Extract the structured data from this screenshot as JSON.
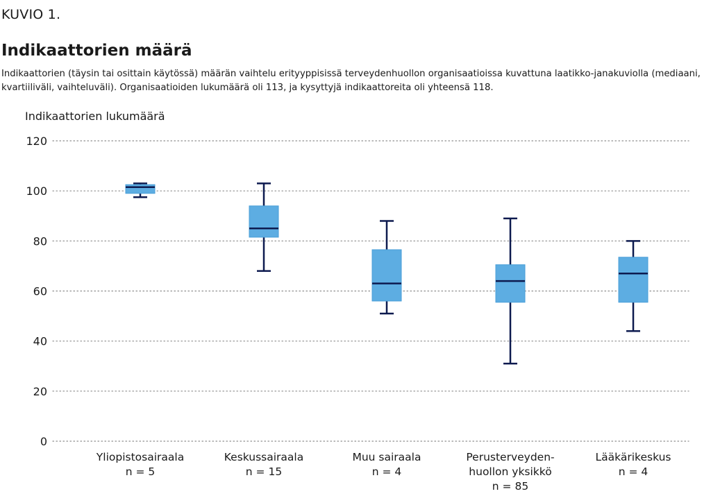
{
  "header": {
    "kicker": "KUVIO 1.",
    "title": "Indikaattorien määrä",
    "subtitle": "Indikaattorien (täysin tai osittain käytössä) määrän vaihtelu erityyppisissä terveydenhuollon organisaatioissa kuvattuna laatikko-janakuviolla (mediaani, kvartiiliväli, vaihteluväli). Organisaatioiden lukumäärä oli 113, ja kysyttyjä indikaattoreita oli yhteensä 118."
  },
  "colors": {
    "box_fill": "#5dade2",
    "line": "#0d1a4f",
    "grid": "#8c8c8c"
  },
  "chart_data": {
    "type": "box",
    "ylabel": "Indikaattorien lukumäärä",
    "ylim": [
      0,
      120
    ],
    "yticks": [
      "0",
      "20",
      "40",
      "60",
      "80",
      "100",
      "120"
    ],
    "grid": "horizontal dotted",
    "categories": [
      {
        "label_lines": [
          "Yliopistosairaala",
          "n = 5"
        ],
        "min": 97.5,
        "q1": 99,
        "median": 101.5,
        "q3": 102.5,
        "max": 103
      },
      {
        "label_lines": [
          "Keskussairaala",
          "n = 15"
        ],
        "min": 68,
        "q1": 81.5,
        "median": 85,
        "q3": 94,
        "max": 103
      },
      {
        "label_lines": [
          "Muu sairaala",
          "n = 4"
        ],
        "min": 51,
        "q1": 56,
        "median": 63,
        "q3": 76.5,
        "max": 88
      },
      {
        "label_lines": [
          "Perusterveyden-",
          "huollon yksikkö",
          "n = 85"
        ],
        "min": 31,
        "q1": 55.5,
        "median": 64,
        "q3": 70.5,
        "max": 89
      },
      {
        "label_lines": [
          "Lääkärikeskus",
          "n = 4"
        ],
        "min": 44,
        "q1": 55.5,
        "median": 67,
        "q3": 73.5,
        "max": 80
      }
    ]
  }
}
